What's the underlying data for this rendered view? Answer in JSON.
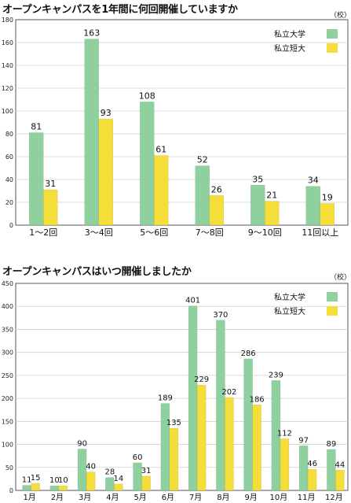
{
  "charts": [
    {
      "title": "オープンキャンパスを1年間に何回開催していますか",
      "unit": "（校）",
      "chart_data": {
        "type": "bar",
        "categories": [
          "1～2回",
          "3～4回",
          "5～6回",
          "7～8回",
          "9～10回",
          "11回以上"
        ],
        "series": [
          {
            "name": "私立大学",
            "values": [
              81,
              163,
              108,
              52,
              35,
              34
            ]
          },
          {
            "name": "私立短大",
            "values": [
              31,
              93,
              61,
              26,
              21,
              19
            ]
          }
        ],
        "ylim": [
          0,
          180
        ],
        "yticks": [
          0,
          20,
          40,
          60,
          80,
          100,
          120,
          140,
          160,
          180
        ],
        "legend": "top-right",
        "grid": true
      }
    },
    {
      "title": "オープンキャンパスはいつ開催しましたか",
      "unit": "（校）",
      "chart_data": {
        "type": "bar",
        "categories": [
          "1月",
          "2月",
          "3月",
          "4月",
          "5月",
          "6月",
          "7月",
          "8月",
          "9月",
          "10月",
          "11月",
          "12月"
        ],
        "series": [
          {
            "name": "私立大学",
            "values": [
              11,
              10,
              90,
              28,
              60,
              189,
              401,
              370,
              286,
              239,
              97,
              89
            ]
          },
          {
            "name": "私立短大",
            "values": [
              15,
              10,
              40,
              14,
              31,
              135,
              229,
              202,
              186,
              112,
              46,
              44
            ]
          }
        ],
        "ylim": [
          0,
          450
        ],
        "yticks": [
          0,
          50,
          100,
          150,
          200,
          250,
          300,
          350,
          400,
          450
        ],
        "legend": "top-right",
        "grid": true
      }
    }
  ],
  "colors": {
    "university": "#8fd19e",
    "junior_college": "#f5de3a",
    "grid": "#cfcfcf",
    "axis": "#555555"
  }
}
